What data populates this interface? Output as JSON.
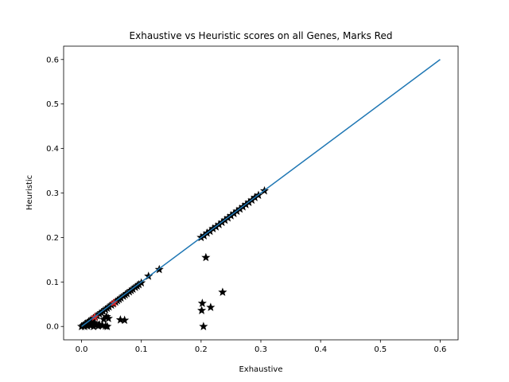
{
  "chart_data": {
    "type": "scatter",
    "title": "Exhaustive vs Heuristic scores on all Genes, Marks Red",
    "xlabel": "Exhaustive",
    "ylabel": "Heuristic",
    "xlim": [
      -0.03,
      0.63
    ],
    "ylim": [
      -0.03,
      0.63
    ],
    "xticks": [
      0.0,
      0.1,
      0.2,
      0.3,
      0.4,
      0.5,
      0.6
    ],
    "yticks": [
      0.0,
      0.1,
      0.2,
      0.3,
      0.4,
      0.5,
      0.6
    ],
    "tick_labels": [
      "0.0",
      "0.1",
      "0.2",
      "0.3",
      "0.4",
      "0.5",
      "0.6"
    ],
    "grid": false,
    "marker": "star",
    "reference_line": {
      "x": [
        0.0,
        0.6
      ],
      "y": [
        0.0,
        0.6
      ],
      "color": "#1f77b4"
    },
    "series": [
      {
        "color": "#000000",
        "points": [
          [
            0.0,
            0.0
          ],
          [
            0.003,
            0.002
          ],
          [
            0.005,
            0.004
          ],
          [
            0.007,
            0.006
          ],
          [
            0.01,
            0.008
          ],
          [
            0.012,
            0.011
          ],
          [
            0.015,
            0.013
          ],
          [
            0.018,
            0.016
          ],
          [
            0.02,
            0.018
          ],
          [
            0.023,
            0.021
          ],
          [
            0.026,
            0.024
          ],
          [
            0.03,
            0.028
          ],
          [
            0.033,
            0.031
          ],
          [
            0.036,
            0.034
          ],
          [
            0.04,
            0.038
          ],
          [
            0.043,
            0.041
          ],
          [
            0.046,
            0.044
          ],
          [
            0.05,
            0.048
          ],
          [
            0.053,
            0.051
          ],
          [
            0.057,
            0.055
          ],
          [
            0.06,
            0.058
          ],
          [
            0.063,
            0.061
          ],
          [
            0.066,
            0.064
          ],
          [
            0.07,
            0.068
          ],
          [
            0.073,
            0.071
          ],
          [
            0.076,
            0.074
          ],
          [
            0.08,
            0.078
          ],
          [
            0.083,
            0.081
          ],
          [
            0.086,
            0.084
          ],
          [
            0.09,
            0.088
          ],
          [
            0.093,
            0.091
          ],
          [
            0.096,
            0.094
          ],
          [
            0.1,
            0.098
          ],
          [
            0.005,
            0.0
          ],
          [
            0.01,
            0.001
          ],
          [
            0.015,
            0.002
          ],
          [
            0.02,
            0.0
          ],
          [
            0.025,
            0.003
          ],
          [
            0.03,
            0.004
          ],
          [
            0.012,
            0.005
          ],
          [
            0.008,
            0.003
          ],
          [
            0.022,
            0.008
          ],
          [
            0.018,
            0.006
          ],
          [
            0.028,
            0.001
          ],
          [
            0.035,
            0.002
          ],
          [
            0.04,
            0.001
          ],
          [
            0.043,
            0.0
          ],
          [
            0.037,
            0.016
          ],
          [
            0.042,
            0.022
          ],
          [
            0.045,
            0.018
          ],
          [
            0.065,
            0.015
          ],
          [
            0.072,
            0.014
          ],
          [
            0.112,
            0.113
          ],
          [
            0.13,
            0.128
          ],
          [
            0.2,
            0.2
          ],
          [
            0.205,
            0.204
          ],
          [
            0.21,
            0.21
          ],
          [
            0.215,
            0.214
          ],
          [
            0.22,
            0.22
          ],
          [
            0.225,
            0.224
          ],
          [
            0.23,
            0.229
          ],
          [
            0.235,
            0.234
          ],
          [
            0.24,
            0.239
          ],
          [
            0.245,
            0.244
          ],
          [
            0.25,
            0.249
          ],
          [
            0.255,
            0.254
          ],
          [
            0.26,
            0.259
          ],
          [
            0.265,
            0.264
          ],
          [
            0.27,
            0.269
          ],
          [
            0.275,
            0.274
          ],
          [
            0.28,
            0.279
          ],
          [
            0.285,
            0.284
          ],
          [
            0.29,
            0.29
          ],
          [
            0.296,
            0.295
          ],
          [
            0.306,
            0.305
          ],
          [
            0.208,
            0.155
          ],
          [
            0.236,
            0.077
          ],
          [
            0.202,
            0.052
          ],
          [
            0.216,
            0.043
          ],
          [
            0.201,
            0.036
          ],
          [
            0.204,
            0.0
          ]
        ]
      },
      {
        "color": "#d62728",
        "points": [
          [
            0.022,
            0.021
          ],
          [
            0.054,
            0.053
          ]
        ]
      }
    ]
  }
}
